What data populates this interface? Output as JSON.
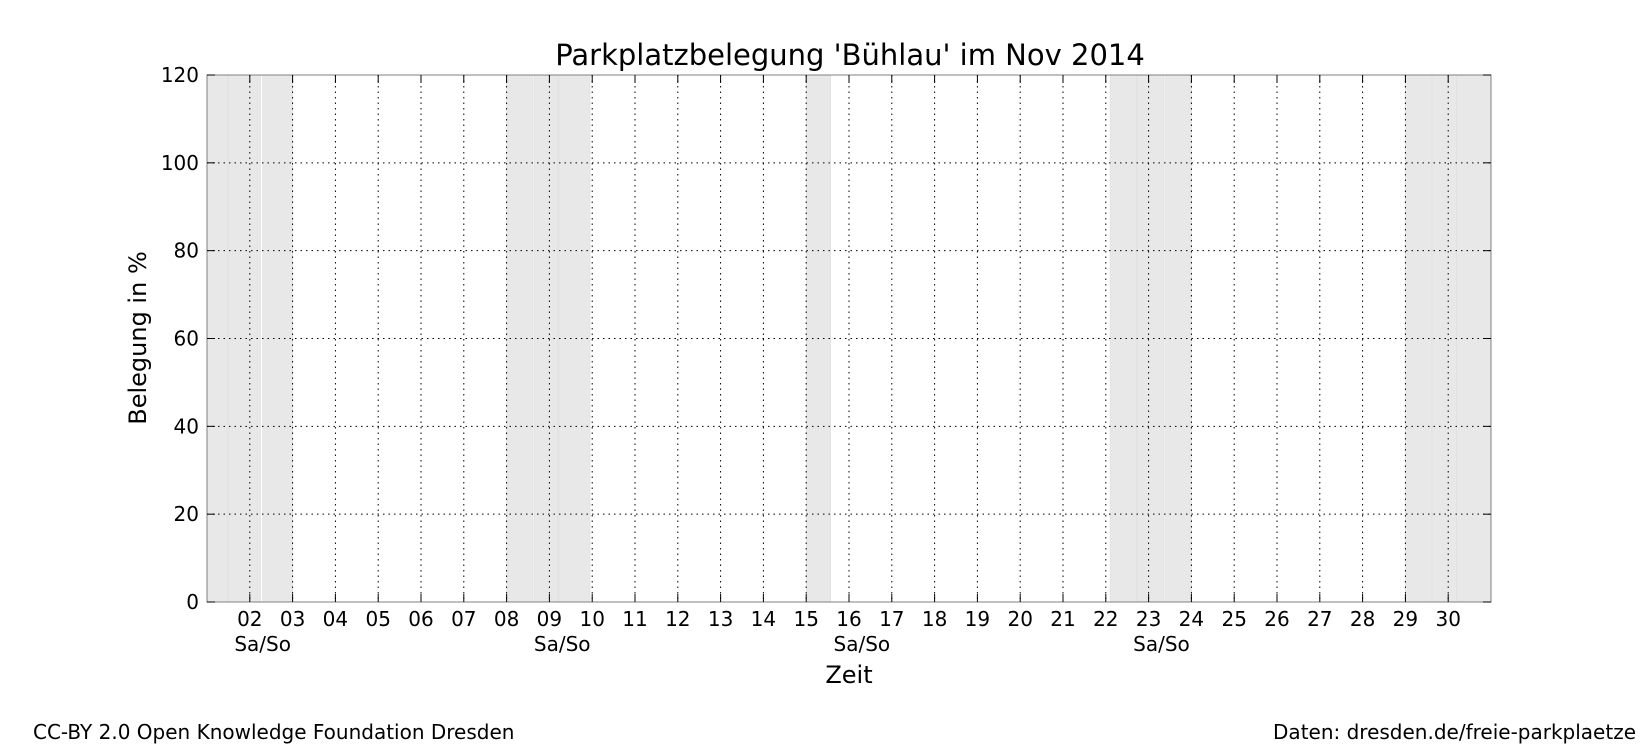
{
  "chart_data": {
    "type": "line",
    "title": "Parkplatzbelegung 'Bühlau' im Nov 2014",
    "xlabel": "Zeit",
    "ylabel": "Belegung in %",
    "xlim": [
      1.0,
      31.0
    ],
    "ylim": [
      0,
      120
    ],
    "yticks": [
      0,
      20,
      40,
      60,
      80,
      100,
      120
    ],
    "xticks": [
      {
        "day": 2,
        "label": "02"
      },
      {
        "day": 3,
        "label": "03"
      },
      {
        "day": 4,
        "label": "04"
      },
      {
        "day": 5,
        "label": "05"
      },
      {
        "day": 6,
        "label": "06"
      },
      {
        "day": 7,
        "label": "07"
      },
      {
        "day": 8,
        "label": "08"
      },
      {
        "day": 9,
        "label": "09"
      },
      {
        "day": 10,
        "label": "10"
      },
      {
        "day": 11,
        "label": "11"
      },
      {
        "day": 12,
        "label": "12"
      },
      {
        "day": 13,
        "label": "13"
      },
      {
        "day": 14,
        "label": "14"
      },
      {
        "day": 15,
        "label": "15"
      },
      {
        "day": 16,
        "label": "16"
      },
      {
        "day": 17,
        "label": "17"
      },
      {
        "day": 18,
        "label": "18"
      },
      {
        "day": 19,
        "label": "19"
      },
      {
        "day": 20,
        "label": "20"
      },
      {
        "day": 21,
        "label": "21"
      },
      {
        "day": 22,
        "label": "22"
      },
      {
        "day": 23,
        "label": "23"
      },
      {
        "day": 24,
        "label": "24"
      },
      {
        "day": 25,
        "label": "25"
      },
      {
        "day": 26,
        "label": "26"
      },
      {
        "day": 27,
        "label": "27"
      },
      {
        "day": 28,
        "label": "28"
      },
      {
        "day": 29,
        "label": "29"
      },
      {
        "day": 30,
        "label": "30"
      }
    ],
    "weekend_labels": [
      {
        "day": 2.3,
        "label": "Sa/So"
      },
      {
        "day": 9.3,
        "label": "Sa/So"
      },
      {
        "day": 16.3,
        "label": "Sa/So"
      },
      {
        "day": 23.3,
        "label": "Sa/So"
      }
    ],
    "shaded_intervals": [
      [
        1.0,
        1.48
      ],
      [
        1.5,
        2.25
      ],
      [
        2.3,
        3.0
      ],
      [
        8.0,
        8.62
      ],
      [
        8.65,
        9.2
      ],
      [
        9.22,
        9.95
      ],
      [
        15.0,
        15.57
      ],
      [
        22.1,
        22.72
      ],
      [
        22.74,
        23.35
      ],
      [
        23.38,
        24.0
      ],
      [
        29.0,
        29.62
      ],
      [
        29.64,
        30.2
      ],
      [
        30.22,
        31.0
      ]
    ],
    "series": [],
    "grid": true,
    "colors": {
      "shade": "#e8e8e8",
      "grid": "#000000",
      "axis": "#808080"
    }
  },
  "footer": {
    "left": "CC-BY 2.0 Open Knowledge Foundation Dresden",
    "right": "Daten: dresden.de/freie-parkplaetze"
  }
}
